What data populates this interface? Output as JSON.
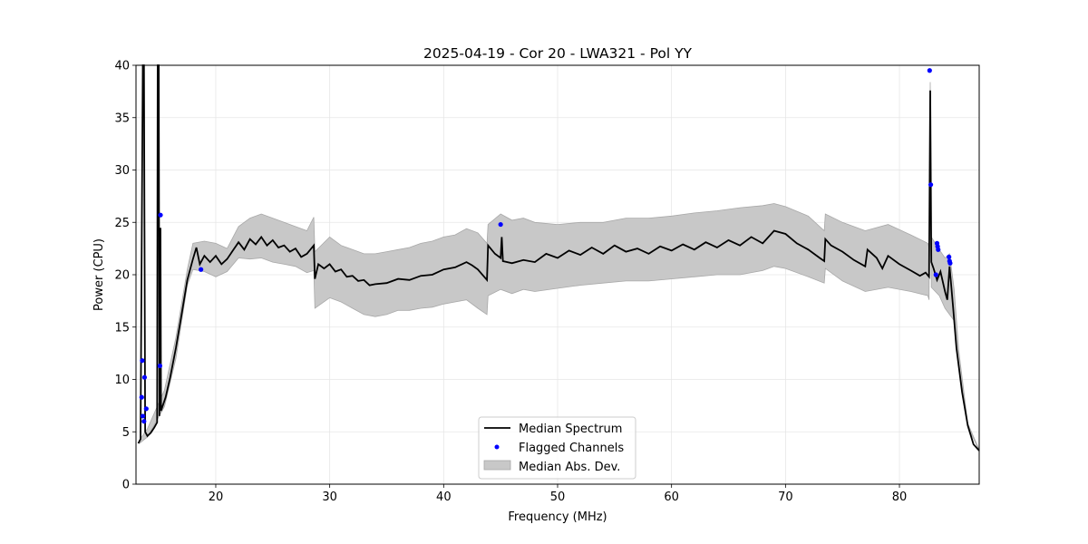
{
  "chart_data": {
    "type": "line",
    "title": "2025-04-19 - Cor 20 - LWA321 - Pol YY",
    "xlabel": "Frequency (MHz)",
    "ylabel": "Power (CPU)",
    "xlim": [
      13.0,
      87.0
    ],
    "ylim": [
      0,
      40
    ],
    "xticks": [
      20,
      30,
      40,
      50,
      60,
      70,
      80
    ],
    "yticks": [
      0,
      5,
      10,
      15,
      20,
      25,
      30,
      35,
      40
    ],
    "grid": true,
    "legend_position": "lower-center",
    "series": [
      {
        "name": "Median Spectrum",
        "kind": "line",
        "color": "#000000",
        "points": [
          [
            13.2,
            3.9
          ],
          [
            13.4,
            4.3
          ],
          [
            13.6,
            40
          ],
          [
            13.7,
            40
          ],
          [
            13.8,
            5.0
          ],
          [
            14.0,
            4.6
          ],
          [
            14.3,
            4.9
          ],
          [
            14.6,
            5.4
          ],
          [
            14.85,
            5.9
          ],
          [
            14.9,
            40
          ],
          [
            15.0,
            40
          ],
          [
            15.05,
            6.5
          ],
          [
            15.1,
            24.4
          ],
          [
            15.15,
            24.4
          ],
          [
            15.2,
            7.0
          ],
          [
            15.6,
            8.3
          ],
          [
            16.0,
            10.2
          ],
          [
            16.5,
            13.0
          ],
          [
            17.0,
            16.2
          ],
          [
            17.5,
            19.5
          ],
          [
            18.0,
            21.5
          ],
          [
            18.3,
            22.6
          ],
          [
            18.6,
            21.0
          ],
          [
            19.0,
            21.8
          ],
          [
            19.5,
            21.2
          ],
          [
            20.0,
            21.8
          ],
          [
            20.5,
            21.0
          ],
          [
            21.0,
            21.5
          ],
          [
            21.5,
            22.3
          ],
          [
            22.0,
            23.1
          ],
          [
            22.5,
            22.4
          ],
          [
            23.0,
            23.4
          ],
          [
            23.5,
            22.9
          ],
          [
            24.0,
            23.6
          ],
          [
            24.5,
            22.8
          ],
          [
            25.0,
            23.3
          ],
          [
            25.5,
            22.6
          ],
          [
            26.0,
            22.8
          ],
          [
            26.5,
            22.2
          ],
          [
            27.0,
            22.5
          ],
          [
            27.5,
            21.7
          ],
          [
            28.0,
            22.0
          ],
          [
            28.6,
            22.8
          ],
          [
            28.7,
            19.6
          ],
          [
            29.0,
            21.0
          ],
          [
            29.5,
            20.6
          ],
          [
            30.0,
            21.0
          ],
          [
            30.5,
            20.3
          ],
          [
            31.0,
            20.5
          ],
          [
            31.5,
            19.8
          ],
          [
            32.0,
            19.9
          ],
          [
            32.5,
            19.4
          ],
          [
            33.0,
            19.5
          ],
          [
            33.5,
            19.0
          ],
          [
            34.0,
            19.1
          ],
          [
            35.0,
            19.2
          ],
          [
            36.0,
            19.6
          ],
          [
            37.0,
            19.5
          ],
          [
            38.0,
            19.9
          ],
          [
            39.0,
            20.0
          ],
          [
            40.0,
            20.5
          ],
          [
            41.0,
            20.7
          ],
          [
            42.0,
            21.2
          ],
          [
            42.5,
            20.9
          ],
          [
            43.0,
            20.5
          ],
          [
            43.8,
            19.5
          ],
          [
            43.9,
            22.8
          ],
          [
            44.5,
            22.0
          ],
          [
            45.0,
            21.6
          ],
          [
            45.1,
            23.6
          ],
          [
            45.2,
            21.3
          ],
          [
            46.0,
            21.1
          ],
          [
            47.0,
            21.4
          ],
          [
            48.0,
            21.2
          ],
          [
            49.0,
            22.0
          ],
          [
            50.0,
            21.6
          ],
          [
            51.0,
            22.3
          ],
          [
            52.0,
            21.9
          ],
          [
            53.0,
            22.6
          ],
          [
            54.0,
            22.0
          ],
          [
            55.0,
            22.8
          ],
          [
            56.0,
            22.2
          ],
          [
            57.0,
            22.5
          ],
          [
            58.0,
            22.0
          ],
          [
            59.0,
            22.7
          ],
          [
            60.0,
            22.3
          ],
          [
            61.0,
            22.9
          ],
          [
            62.0,
            22.4
          ],
          [
            63.0,
            23.1
          ],
          [
            64.0,
            22.6
          ],
          [
            65.0,
            23.3
          ],
          [
            66.0,
            22.8
          ],
          [
            67.0,
            23.6
          ],
          [
            68.0,
            23.0
          ],
          [
            69.0,
            24.2
          ],
          [
            70.0,
            23.9
          ],
          [
            71.0,
            23.0
          ],
          [
            72.0,
            22.4
          ],
          [
            73.0,
            21.6
          ],
          [
            73.4,
            21.3
          ],
          [
            73.5,
            23.4
          ],
          [
            74.0,
            22.8
          ],
          [
            75.0,
            22.2
          ],
          [
            76.0,
            21.4
          ],
          [
            77.0,
            20.8
          ],
          [
            77.2,
            22.4
          ],
          [
            78.0,
            21.6
          ],
          [
            78.5,
            20.6
          ],
          [
            79.0,
            21.8
          ],
          [
            80.0,
            21.0
          ],
          [
            81.0,
            20.4
          ],
          [
            81.8,
            19.9
          ],
          [
            82.3,
            20.2
          ],
          [
            82.6,
            19.8
          ],
          [
            82.7,
            37.6
          ],
          [
            82.8,
            21.2
          ],
          [
            83.0,
            20.6
          ],
          [
            83.3,
            19.5
          ],
          [
            83.6,
            20.3
          ],
          [
            84.0,
            18.4
          ],
          [
            84.2,
            17.6
          ],
          [
            84.4,
            20.8
          ],
          [
            84.7,
            17.0
          ],
          [
            85.0,
            13.0
          ],
          [
            85.5,
            8.8
          ],
          [
            86.0,
            5.6
          ],
          [
            86.5,
            3.8
          ],
          [
            87.0,
            3.2
          ]
        ]
      },
      {
        "name": "Flagged Channels",
        "kind": "scatter",
        "color": "#0000ff",
        "points": [
          [
            13.55,
            11.8
          ],
          [
            13.5,
            8.3
          ],
          [
            13.6,
            6.5
          ],
          [
            13.75,
            10.2
          ],
          [
            13.9,
            7.2
          ],
          [
            13.7,
            6.0
          ],
          [
            15.15,
            25.7
          ],
          [
            15.1,
            11.3
          ],
          [
            18.7,
            20.5
          ],
          [
            45.0,
            24.8
          ],
          [
            82.65,
            39.5
          ],
          [
            82.75,
            28.6
          ],
          [
            83.3,
            23.0
          ],
          [
            83.35,
            22.7
          ],
          [
            83.4,
            22.4
          ],
          [
            83.2,
            20.0
          ],
          [
            84.35,
            21.7
          ],
          [
            84.4,
            21.3
          ],
          [
            84.45,
            21.1
          ]
        ]
      },
      {
        "name": "Median Abs. Dev.",
        "kind": "band",
        "color": "#c8c8c8",
        "points": [
          [
            13.3,
            3.9,
            4.2
          ],
          [
            14.0,
            4.5,
            5.3
          ],
          [
            15.5,
            7.4,
            9.0
          ],
          [
            16.5,
            12.0,
            14.0
          ],
          [
            17.5,
            19.0,
            20.5
          ],
          [
            18.0,
            20.5,
            23.0
          ],
          [
            19.0,
            20.3,
            23.2
          ],
          [
            20.0,
            19.8,
            23.0
          ],
          [
            21.0,
            20.3,
            22.5
          ],
          [
            22.0,
            21.6,
            24.6
          ],
          [
            23.0,
            21.5,
            25.4
          ],
          [
            24.0,
            21.6,
            25.8
          ],
          [
            25.0,
            21.2,
            25.4
          ],
          [
            26.0,
            21.0,
            25.0
          ],
          [
            27.0,
            20.8,
            24.6
          ],
          [
            28.0,
            20.2,
            24.2
          ],
          [
            28.6,
            20.4,
            25.5
          ],
          [
            28.7,
            16.8,
            22.2
          ],
          [
            30.0,
            17.8,
            23.6
          ],
          [
            31.0,
            17.4,
            22.8
          ],
          [
            32.0,
            16.8,
            22.4
          ],
          [
            33.0,
            16.2,
            22.0
          ],
          [
            34.0,
            16.0,
            22.0
          ],
          [
            35.0,
            16.2,
            22.2
          ],
          [
            36.0,
            16.6,
            22.4
          ],
          [
            37.0,
            16.6,
            22.6
          ],
          [
            38.0,
            16.8,
            23.0
          ],
          [
            39.0,
            16.9,
            23.2
          ],
          [
            40.0,
            17.2,
            23.6
          ],
          [
            41.0,
            17.4,
            23.8
          ],
          [
            42.0,
            17.6,
            24.4
          ],
          [
            43.0,
            16.8,
            24.0
          ],
          [
            43.8,
            16.2,
            23.0
          ],
          [
            43.9,
            18.0,
            24.8
          ],
          [
            45.0,
            18.6,
            25.8
          ],
          [
            46.0,
            18.2,
            25.2
          ],
          [
            47.0,
            18.6,
            25.4
          ],
          [
            48.0,
            18.4,
            25.0
          ],
          [
            50.0,
            18.7,
            24.8
          ],
          [
            52.0,
            19.0,
            25.0
          ],
          [
            54.0,
            19.2,
            25.0
          ],
          [
            56.0,
            19.4,
            25.4
          ],
          [
            58.0,
            19.4,
            25.4
          ],
          [
            60.0,
            19.6,
            25.6
          ],
          [
            62.0,
            19.8,
            25.9
          ],
          [
            64.0,
            20.0,
            26.1
          ],
          [
            66.0,
            20.0,
            26.4
          ],
          [
            68.0,
            20.4,
            26.6
          ],
          [
            69.0,
            20.8,
            26.8
          ],
          [
            70.0,
            20.6,
            26.5
          ],
          [
            72.0,
            19.8,
            25.6
          ],
          [
            73.4,
            19.2,
            24.2
          ],
          [
            73.5,
            20.6,
            25.8
          ],
          [
            75.0,
            19.4,
            25.0
          ],
          [
            77.0,
            18.4,
            24.2
          ],
          [
            79.0,
            18.8,
            24.8
          ],
          [
            81.0,
            18.4,
            23.8
          ],
          [
            82.5,
            18.0,
            23.0
          ],
          [
            82.6,
            17.6,
            22.6
          ],
          [
            82.7,
            35.8,
            38.4
          ],
          [
            82.8,
            18.8,
            23.6
          ],
          [
            83.5,
            18.0,
            22.4
          ],
          [
            84.0,
            16.8,
            21.6
          ],
          [
            84.4,
            16.2,
            22.0
          ],
          [
            84.8,
            15.6,
            18.6
          ],
          [
            85.2,
            11.6,
            12.8
          ],
          [
            86.0,
            5.5,
            5.8
          ],
          [
            87.0,
            3.2,
            3.3
          ]
        ]
      }
    ]
  }
}
